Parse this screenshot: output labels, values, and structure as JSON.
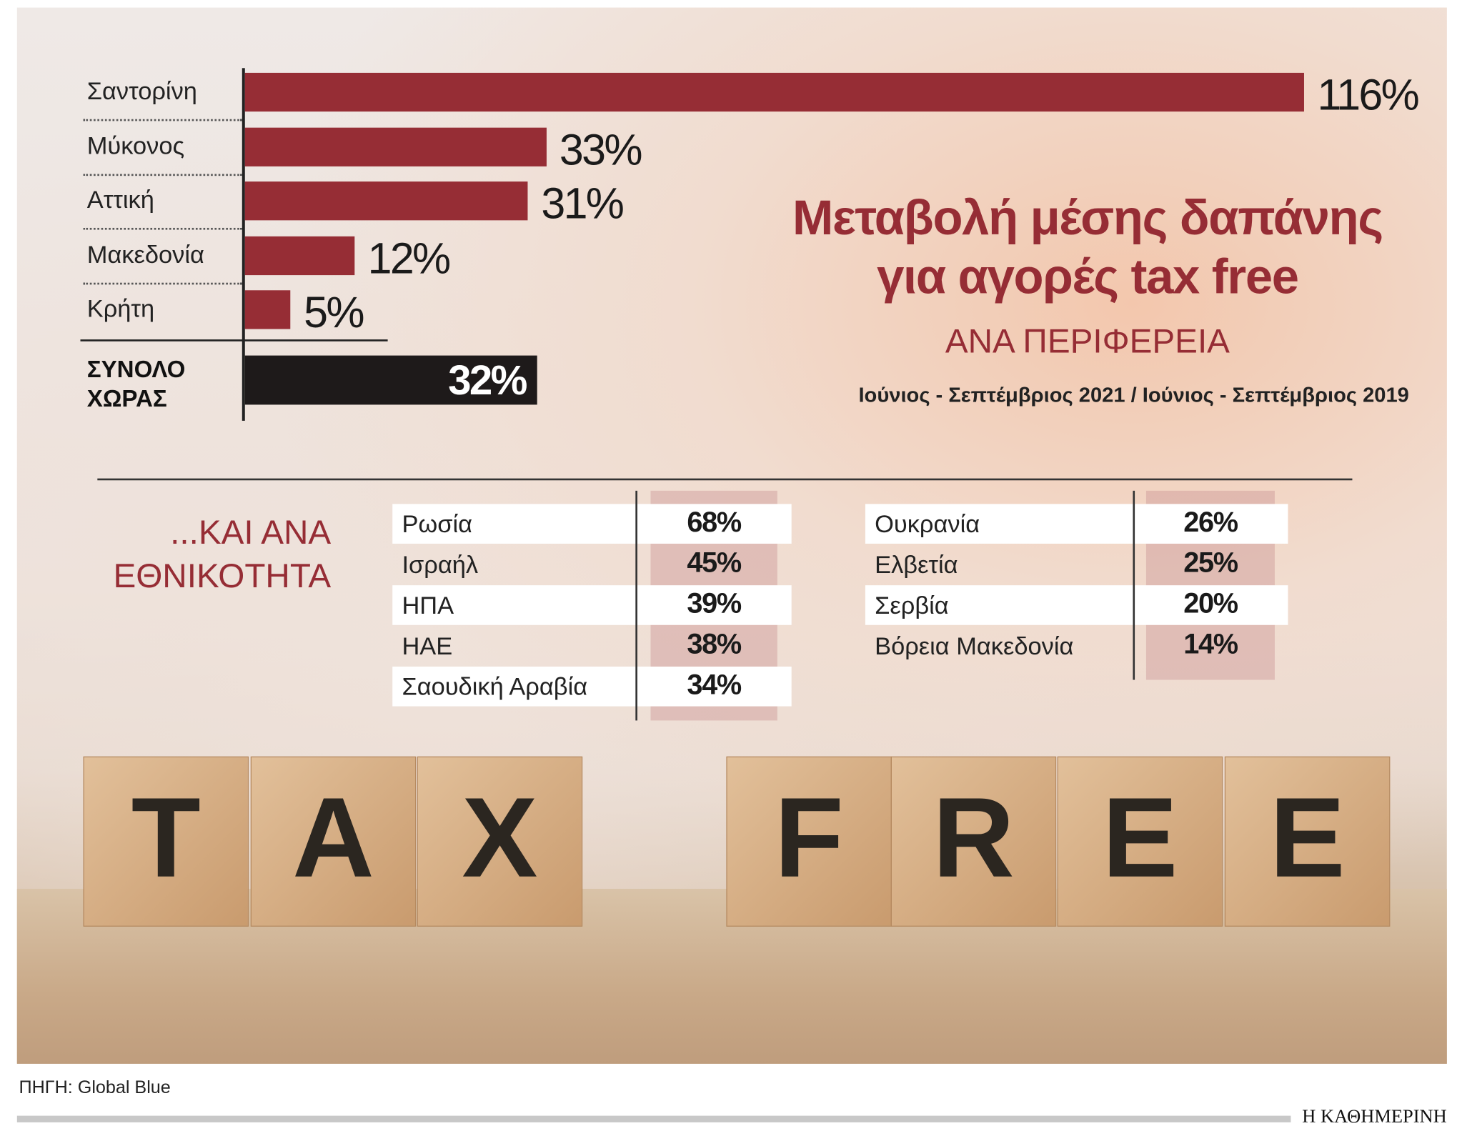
{
  "chart_data": {
    "type": "bar",
    "title": "Μεταβολή μέσης δαπάνης για αγορές tax free",
    "subtitle": "ΑΝΑ ΠΕΡΙΦΕΡΕΙΑ",
    "note": "Ιούνιος - Σεπτέμβριος 2021 / Ιούνιος - Σεπτέμβριος 2019",
    "categories": [
      "Σαντορίνη",
      "Μύκονος",
      "Αττική",
      "Μακεδονία",
      "Κρήτη",
      "ΣΥΝΟΛΟ ΧΩΡΑΣ"
    ],
    "values": [
      116,
      33,
      31,
      12,
      5,
      32
    ],
    "value_labels": [
      "116%",
      "33%",
      "31%",
      "12%",
      "5%",
      "32%"
    ],
    "colors": [
      "#962d35",
      "#962d35",
      "#962d35",
      "#962d35",
      "#962d35",
      "#1e1a1a"
    ]
  },
  "nationality": {
    "title": "...ΚΑΙ ΑΝΑ ΕΘΝΙΚΟΤΗΤΑ",
    "tables": [
      [
        [
          "Ρωσία",
          "68%"
        ],
        [
          "Ισραήλ",
          "45%"
        ],
        [
          "ΗΠΑ",
          "39%"
        ],
        [
          "ΗΑΕ",
          "38%"
        ],
        [
          "Σαουδική Αραβία",
          "34%"
        ]
      ],
      [
        [
          "Ουκρανία",
          "26%"
        ],
        [
          "Ελβετία",
          "25%"
        ],
        [
          "Σερβία",
          "20%"
        ],
        [
          "Βόρεια Μακεδονία",
          "14%"
        ]
      ]
    ]
  },
  "photo_letters": [
    "T",
    "A",
    "X",
    "F",
    "R",
    "E",
    "E"
  ],
  "source": "ΠΗΓΗ: Global Blue",
  "brand": "Η ΚΑΘΗΜΕΡΙΝΗ"
}
